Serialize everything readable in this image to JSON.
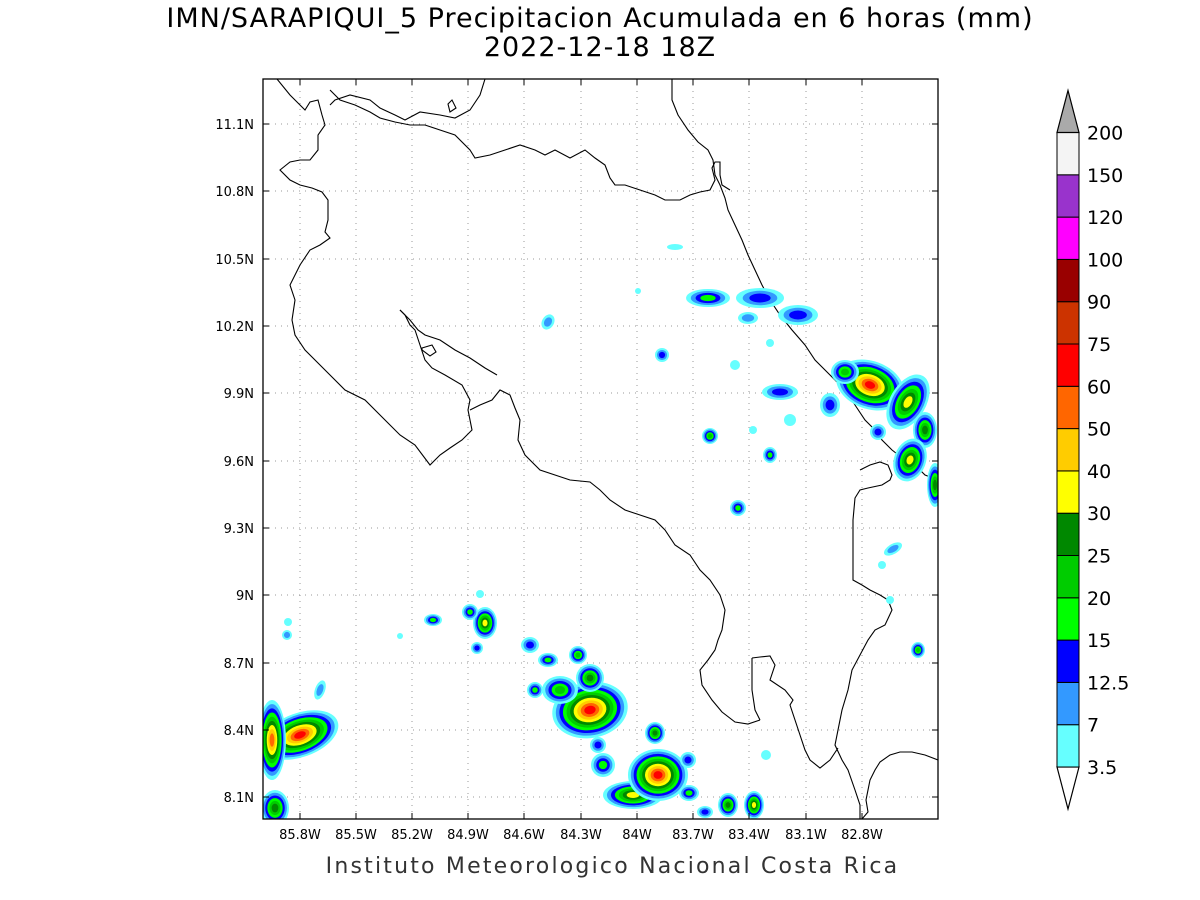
{
  "title": {
    "line1": "IMN/SARAPIQUI_5 Precipitacion Acumulada en 6 horas (mm)",
    "line2": "2022-12-18 18Z"
  },
  "footer": "Instituto Meteorologico Nacional Costa Rica",
  "axes": {
    "lon_ticks": [
      "85.8W",
      "85.5W",
      "85.2W",
      "84.9W",
      "84.6W",
      "84.3W",
      "84W",
      "83.7W",
      "83.4W",
      "83.1W",
      "82.8W"
    ],
    "lat_ticks": [
      "11.1N",
      "10.8N",
      "10.5N",
      "10.2N",
      "9.9N",
      "9.6N",
      "9.3N",
      "9N",
      "8.7N",
      "8.4N",
      "8.1N"
    ],
    "grid": "dotted"
  },
  "colorbar": {
    "labels": [
      "3.5",
      "7",
      "12.5",
      "15",
      "20",
      "25",
      "30",
      "40",
      "50",
      "60",
      "75",
      "90",
      "100",
      "120",
      "150",
      "200"
    ],
    "colors": [
      "#66ffff",
      "#3399ff",
      "#0000ff",
      "#00ff00",
      "#00cc00",
      "#008800",
      "#ffff00",
      "#ffcc00",
      "#ff6600",
      "#ff0000",
      "#cc3300",
      "#990000",
      "#ff00ff",
      "#9933cc",
      "#f4f4f4",
      "#aaaaaa"
    ]
  },
  "precip_colors": {
    "c3_5": "#66ffff",
    "c7": "#3399ff",
    "c12_5": "#0000ff",
    "c15": "#00ff00",
    "c20": "#00cc00",
    "c25": "#008800",
    "c30": "#ffff00",
    "c40": "#ffcc00",
    "c50": "#ff6600",
    "c60": "#ff0000"
  }
}
